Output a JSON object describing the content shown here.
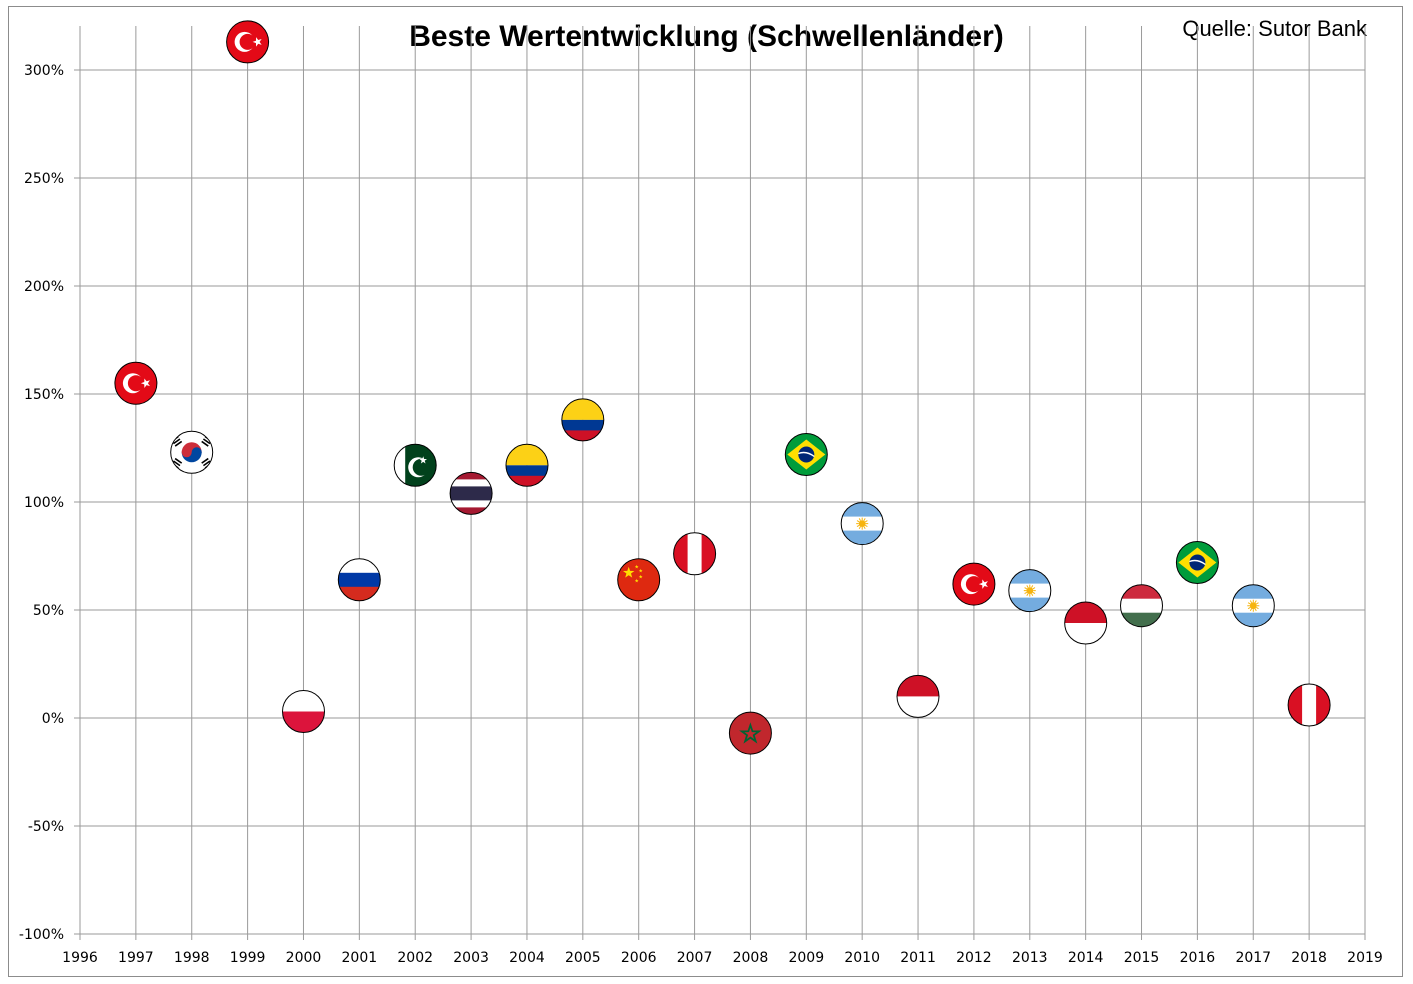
{
  "chart_data": {
    "type": "scatter",
    "title": "Beste Wertentwicklung (Schwellenländer)",
    "source": "Quelle: Sutor Bank",
    "xlabel": "",
    "ylabel": "",
    "xlim": [
      1996,
      2019
    ],
    "ylim": [
      -100,
      300
    ],
    "x_ticks": [
      "1996",
      "1997",
      "1998",
      "1999",
      "2000",
      "2001",
      "2002",
      "2003",
      "2004",
      "2005",
      "2006",
      "2007",
      "2008",
      "2009",
      "2010",
      "2011",
      "2012",
      "2013",
      "2014",
      "2015",
      "2016",
      "2017",
      "2018",
      "2019"
    ],
    "y_ticks": [
      "300%",
      "250%",
      "200%",
      "150%",
      "100%",
      "50%",
      "0%",
      "-50%",
      "-100%"
    ],
    "grid": true,
    "legend": "none",
    "points": [
      {
        "x": 1997,
        "y": 155,
        "marker": "turkey-flag-icon"
      },
      {
        "x": 1998,
        "y": 123,
        "marker": "south-korea-flag-icon"
      },
      {
        "x": 1999,
        "y": 313,
        "marker": "turkey-flag-icon"
      },
      {
        "x": 2000,
        "y": 3,
        "marker": "poland-flag-icon"
      },
      {
        "x": 2001,
        "y": 64,
        "marker": "russia-flag-icon"
      },
      {
        "x": 2002,
        "y": 117,
        "marker": "pakistan-flag-icon"
      },
      {
        "x": 2003,
        "y": 104,
        "marker": "thailand-flag-icon"
      },
      {
        "x": 2004,
        "y": 117,
        "marker": "colombia-flag-icon"
      },
      {
        "x": 2005,
        "y": 138,
        "marker": "colombia-flag-icon"
      },
      {
        "x": 2006,
        "y": 64,
        "marker": "china-flag-icon"
      },
      {
        "x": 2007,
        "y": 76,
        "marker": "peru-flag-icon"
      },
      {
        "x": 2008,
        "y": -7,
        "marker": "morocco-flag-icon"
      },
      {
        "x": 2009,
        "y": 122,
        "marker": "brazil-flag-icon"
      },
      {
        "x": 2010,
        "y": 90,
        "marker": "argentina-flag-icon"
      },
      {
        "x": 2011,
        "y": 10,
        "marker": "indonesia-flag-icon"
      },
      {
        "x": 2012,
        "y": 62,
        "marker": "turkey-flag-icon"
      },
      {
        "x": 2013,
        "y": 59,
        "marker": "argentina-flag-icon"
      },
      {
        "x": 2014,
        "y": 44,
        "marker": "indonesia-flag-icon"
      },
      {
        "x": 2015,
        "y": 52,
        "marker": "hungary-flag-icon"
      },
      {
        "x": 2016,
        "y": 72,
        "marker": "brazil-flag-icon"
      },
      {
        "x": 2017,
        "y": 52,
        "marker": "argentina-flag-icon"
      },
      {
        "x": 2018,
        "y": 6,
        "marker": "peru-flag-icon"
      }
    ],
    "colors": {
      "grid": "#9a9a9a",
      "turkey_red": "#e30a17",
      "korea_red": "#cd2e3a",
      "korea_blue": "#0047a0",
      "poland_red": "#dc143c",
      "russia_blue": "#0039a6",
      "russia_red": "#d52b1e",
      "pakistan_green": "#01411c",
      "thailand_red": "#a51931",
      "thailand_blue": "#2d2a4a",
      "colombia_yellow": "#fcd116",
      "colombia_blue": "#003893",
      "colombia_red": "#ce1126",
      "china_red": "#de2910",
      "china_yellow": "#ffde00",
      "peru_red": "#d91023",
      "morocco_red": "#c1272d",
      "morocco_green": "#006233",
      "brazil_green": "#009c3b",
      "brazil_yellow": "#ffdf00",
      "brazil_blue": "#002776",
      "argentina_blue": "#74acdf",
      "argentina_sun": "#f6b40e",
      "indonesia_red": "#ce1126",
      "hungary_red": "#cd2a3e",
      "hungary_green": "#436f4d"
    }
  }
}
